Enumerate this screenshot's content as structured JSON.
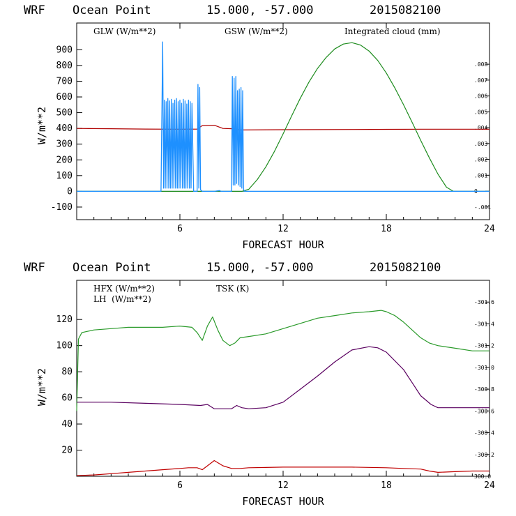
{
  "colors": {
    "glw": "#b00000",
    "gsw": "#1e8c1e",
    "cloud": "#1e90ff",
    "hfx": "#c00000",
    "lh": "#2a9a2a",
    "tsk": "#5a0060",
    "axis": "#000000"
  },
  "chart_data": [
    {
      "type": "line",
      "header": {
        "model": "WRF",
        "location": "Ocean Point",
        "coords": "15.000, -57.000",
        "date": "2015082100"
      },
      "xlabel": "FORECAST HOUR",
      "ylabel": "W/m**2",
      "xlim": [
        0,
        24
      ],
      "ylim": [
        -180,
        1070
      ],
      "right_ylim": [
        -0.0018,
        0.0106
      ],
      "x_ticks": [
        {
          "v": 6,
          "label": "6"
        },
        {
          "v": 12,
          "label": "12"
        },
        {
          "v": 18,
          "label": "18"
        },
        {
          "v": 24,
          "label": "24"
        }
      ],
      "y_ticks": [
        {
          "v": -100,
          "label": "-100"
        },
        {
          "v": 0,
          "label": "0"
        },
        {
          "v": 100,
          "label": "100"
        },
        {
          "v": 200,
          "label": "200"
        },
        {
          "v": 300,
          "label": "300"
        },
        {
          "v": 400,
          "label": "400"
        },
        {
          "v": 500,
          "label": "500"
        },
        {
          "v": 600,
          "label": "600"
        },
        {
          "v": 700,
          "label": "700"
        },
        {
          "v": 800,
          "label": "800"
        },
        {
          "v": 900,
          "label": "900"
        }
      ],
      "right_ticks": [
        {
          "v": -0.001,
          "label": "-.001"
        },
        {
          "v": 0,
          "label": "0"
        },
        {
          "v": 0.001,
          "label": ".001"
        },
        {
          "v": 0.002,
          "label": ".002"
        },
        {
          "v": 0.003,
          "label": ".003"
        },
        {
          "v": 0.004,
          "label": ".004"
        },
        {
          "v": 0.005,
          "label": ".005"
        },
        {
          "v": 0.006,
          "label": ".006"
        },
        {
          "v": 0.007,
          "label": ".007"
        },
        {
          "v": 0.008,
          "label": ".008"
        }
      ],
      "legend": {
        "glw": "GLW (W/m**2)",
        "gsw": "GSW (W/m**2)",
        "cloud": "Integrated cloud (mm)"
      },
      "series": [
        {
          "name": "GLW (W/m**2)",
          "color_key": "glw",
          "x": [
            0,
            2,
            4,
            6,
            7.0,
            7.3,
            8.0,
            8.5,
            9.0,
            9.5,
            12,
            16,
            18,
            20,
            24
          ],
          "y": [
            400,
            398,
            396,
            395,
            396,
            418,
            420,
            400,
            398,
            390,
            392,
            393,
            394,
            395,
            395
          ]
        },
        {
          "name": "GSW (W/m**2)",
          "color_key": "gsw",
          "x": [
            0,
            4,
            8,
            9.6,
            10.0,
            10.5,
            11.0,
            11.5,
            12.0,
            12.5,
            13.0,
            13.5,
            14.0,
            14.5,
            15.0,
            15.5,
            16.0,
            16.5,
            17.0,
            17.5,
            18.0,
            18.5,
            19.0,
            19.5,
            20.0,
            20.5,
            21.0,
            21.5,
            21.9,
            24
          ],
          "y": [
            0,
            0,
            0,
            0,
            13,
            75,
            156,
            255,
            365,
            480,
            592,
            694,
            781,
            851,
            905,
            936,
            945,
            930,
            892,
            832,
            752,
            657,
            551,
            439,
            324,
            213,
            110,
            26,
            0,
            0
          ]
        },
        {
          "name": "Integrated cloud (mm)",
          "color_key": "cloud",
          "x": [
            0,
            4.9,
            5.0,
            5.05,
            5.1,
            5.15,
            5.2,
            5.25,
            5.3,
            5.35,
            5.4,
            5.45,
            5.5,
            5.55,
            5.6,
            5.65,
            5.7,
            5.75,
            5.8,
            5.85,
            5.9,
            5.95,
            6.0,
            6.05,
            6.1,
            6.15,
            6.2,
            6.25,
            6.3,
            6.35,
            6.4,
            6.45,
            6.5,
            6.55,
            6.6,
            6.65,
            6.7,
            6.8,
            7.0,
            7.05,
            7.1,
            7.15,
            7.2,
            7.3,
            8.0,
            8.3,
            8.4,
            9.0,
            9.05,
            9.1,
            9.15,
            9.2,
            9.25,
            9.3,
            9.35,
            9.4,
            9.45,
            9.5,
            9.55,
            9.6,
            9.65,
            9.7,
            9.8,
            10.0,
            24
          ],
          "y": [
            0,
            0,
            950,
            20,
            580,
            20,
            570,
            20,
            590,
            20,
            575,
            20,
            585,
            20,
            560,
            20,
            580,
            20,
            590,
            20,
            570,
            20,
            580,
            20,
            560,
            20,
            585,
            20,
            575,
            20,
            555,
            20,
            580,
            20,
            570,
            20,
            560,
            0,
            0,
            680,
            20,
            660,
            10,
            0,
            0,
            5,
            0,
            0,
            730,
            40,
            720,
            40,
            730,
            50,
            640,
            40,
            650,
            30,
            660,
            20,
            640,
            10,
            0,
            0,
            0
          ]
        }
      ]
    },
    {
      "type": "line",
      "header": {
        "model": "WRF",
        "location": "Ocean Point",
        "coords": "15.000, -57.000",
        "date": "2015082100"
      },
      "xlabel": "FORECAST HOUR",
      "ylabel": "W/m**2",
      "xlim": [
        0,
        24
      ],
      "ylim": [
        0,
        150
      ],
      "right_ylim": [
        300.0,
        301.8
      ],
      "x_ticks": [
        {
          "v": 6,
          "label": "6"
        },
        {
          "v": 12,
          "label": "12"
        },
        {
          "v": 18,
          "label": "18"
        },
        {
          "v": 24,
          "label": "24"
        }
      ],
      "y_ticks": [
        {
          "v": 20,
          "label": "20"
        },
        {
          "v": 40,
          "label": "40"
        },
        {
          "v": 60,
          "label": "60"
        },
        {
          "v": 80,
          "label": "80"
        },
        {
          "v": 100,
          "label": "100"
        },
        {
          "v": 120,
          "label": "120"
        }
      ],
      "right_ticks": [
        {
          "v": 300.0,
          "label": "300.0"
        },
        {
          "v": 300.2,
          "label": "-300.2"
        },
        {
          "v": 300.4,
          "label": "-300.4"
        },
        {
          "v": 300.6,
          "label": "-300.6"
        },
        {
          "v": 300.8,
          "label": "-300.8"
        },
        {
          "v": 301.0,
          "label": "-301.0"
        },
        {
          "v": 301.2,
          "label": "-301.2"
        },
        {
          "v": 301.4,
          "label": "-301.4"
        },
        {
          "v": 301.6,
          "label": "-301.6"
        }
      ],
      "legend": {
        "hfx": "HFX (W/m**2)",
        "lh": "LH  (W/m**2)",
        "tsk": "TSK (K)"
      },
      "series": [
        {
          "name": "HFX (W/m**2)",
          "color_key": "hfx",
          "x": [
            0,
            1,
            2,
            3,
            4,
            5,
            6,
            6.5,
            7.0,
            7.3,
            7.6,
            8.0,
            8.5,
            9.0,
            9.5,
            10,
            12,
            14,
            16,
            18,
            19,
            20,
            20.5,
            21,
            22,
            23,
            24
          ],
          "y": [
            0.5,
            1,
            2,
            3,
            4,
            5,
            6,
            6.5,
            6.5,
            5,
            8,
            12,
            8,
            6,
            6,
            6.5,
            7,
            7,
            7,
            6.5,
            6,
            5.5,
            4,
            3,
            3.5,
            4,
            4
          ]
        },
        {
          "name": "LH (W/m**2)",
          "color_key": "lh",
          "x": [
            0,
            0.1,
            0.3,
            1,
            2,
            3,
            4,
            5,
            6,
            6.7,
            7.0,
            7.3,
            7.6,
            7.9,
            8.2,
            8.5,
            8.9,
            9.2,
            9.5,
            10,
            11,
            12,
            13,
            14,
            15,
            16,
            17,
            17.7,
            18,
            18.5,
            19,
            19.5,
            20,
            20.5,
            21,
            22,
            23,
            24
          ],
          "y": [
            50,
            105,
            110,
            112,
            113,
            114,
            114,
            114,
            115,
            114,
            110,
            104,
            115,
            122,
            112,
            104,
            100,
            102,
            106,
            107,
            109,
            113,
            117,
            121,
            123,
            125,
            126,
            127,
            126,
            123,
            118,
            112,
            106,
            102,
            100,
            98,
            96,
            96
          ]
        },
        {
          "name": "TSK (K)",
          "color_key": "tsk",
          "axis": "right",
          "x": [
            0,
            2,
            4,
            6,
            7.2,
            7.6,
            8,
            9,
            9.3,
            9.6,
            10,
            11,
            12,
            13,
            14,
            15,
            16,
            17,
            17.5,
            18,
            19,
            19.5,
            20,
            20.6,
            21,
            22,
            24
          ],
          "y": [
            300.68,
            300.68,
            300.67,
            300.66,
            300.65,
            300.66,
            300.62,
            300.62,
            300.65,
            300.63,
            300.62,
            300.63,
            300.68,
            300.8,
            300.92,
            301.05,
            301.16,
            301.19,
            301.18,
            301.14,
            300.98,
            300.86,
            300.74,
            300.66,
            300.63,
            300.63,
            300.63
          ]
        }
      ]
    }
  ]
}
